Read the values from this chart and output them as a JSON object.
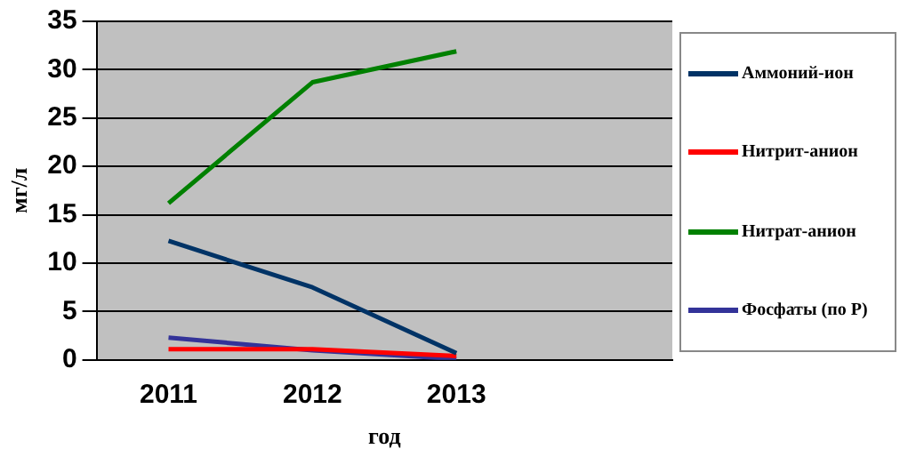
{
  "chart_data": {
    "type": "line",
    "xlabel": "год",
    "ylabel": "мг/л",
    "categories": [
      "2011",
      "2012",
      "2013",
      null
    ],
    "series": [
      {
        "name": "Аммоний-ион",
        "color": "#003366",
        "values": [
          12.3,
          7.5,
          0.7,
          null
        ]
      },
      {
        "name": "Нитрит-анион",
        "color": "#ff0000",
        "values": [
          1.1,
          1.1,
          0.4,
          null
        ]
      },
      {
        "name": "Нитрат-анион",
        "color": "#008000",
        "values": [
          16.2,
          28.7,
          31.9,
          null
        ]
      },
      {
        "name": "Фосфаты (по Р)",
        "color": "#333399",
        "values": [
          2.3,
          1.0,
          0.1,
          null
        ]
      }
    ],
    "ylim": [
      0,
      35
    ],
    "yticks": [
      0,
      5,
      10,
      15,
      20,
      25,
      30,
      35
    ],
    "grid": "y",
    "legend": "right",
    "marker": "none",
    "line_style": "solid"
  }
}
